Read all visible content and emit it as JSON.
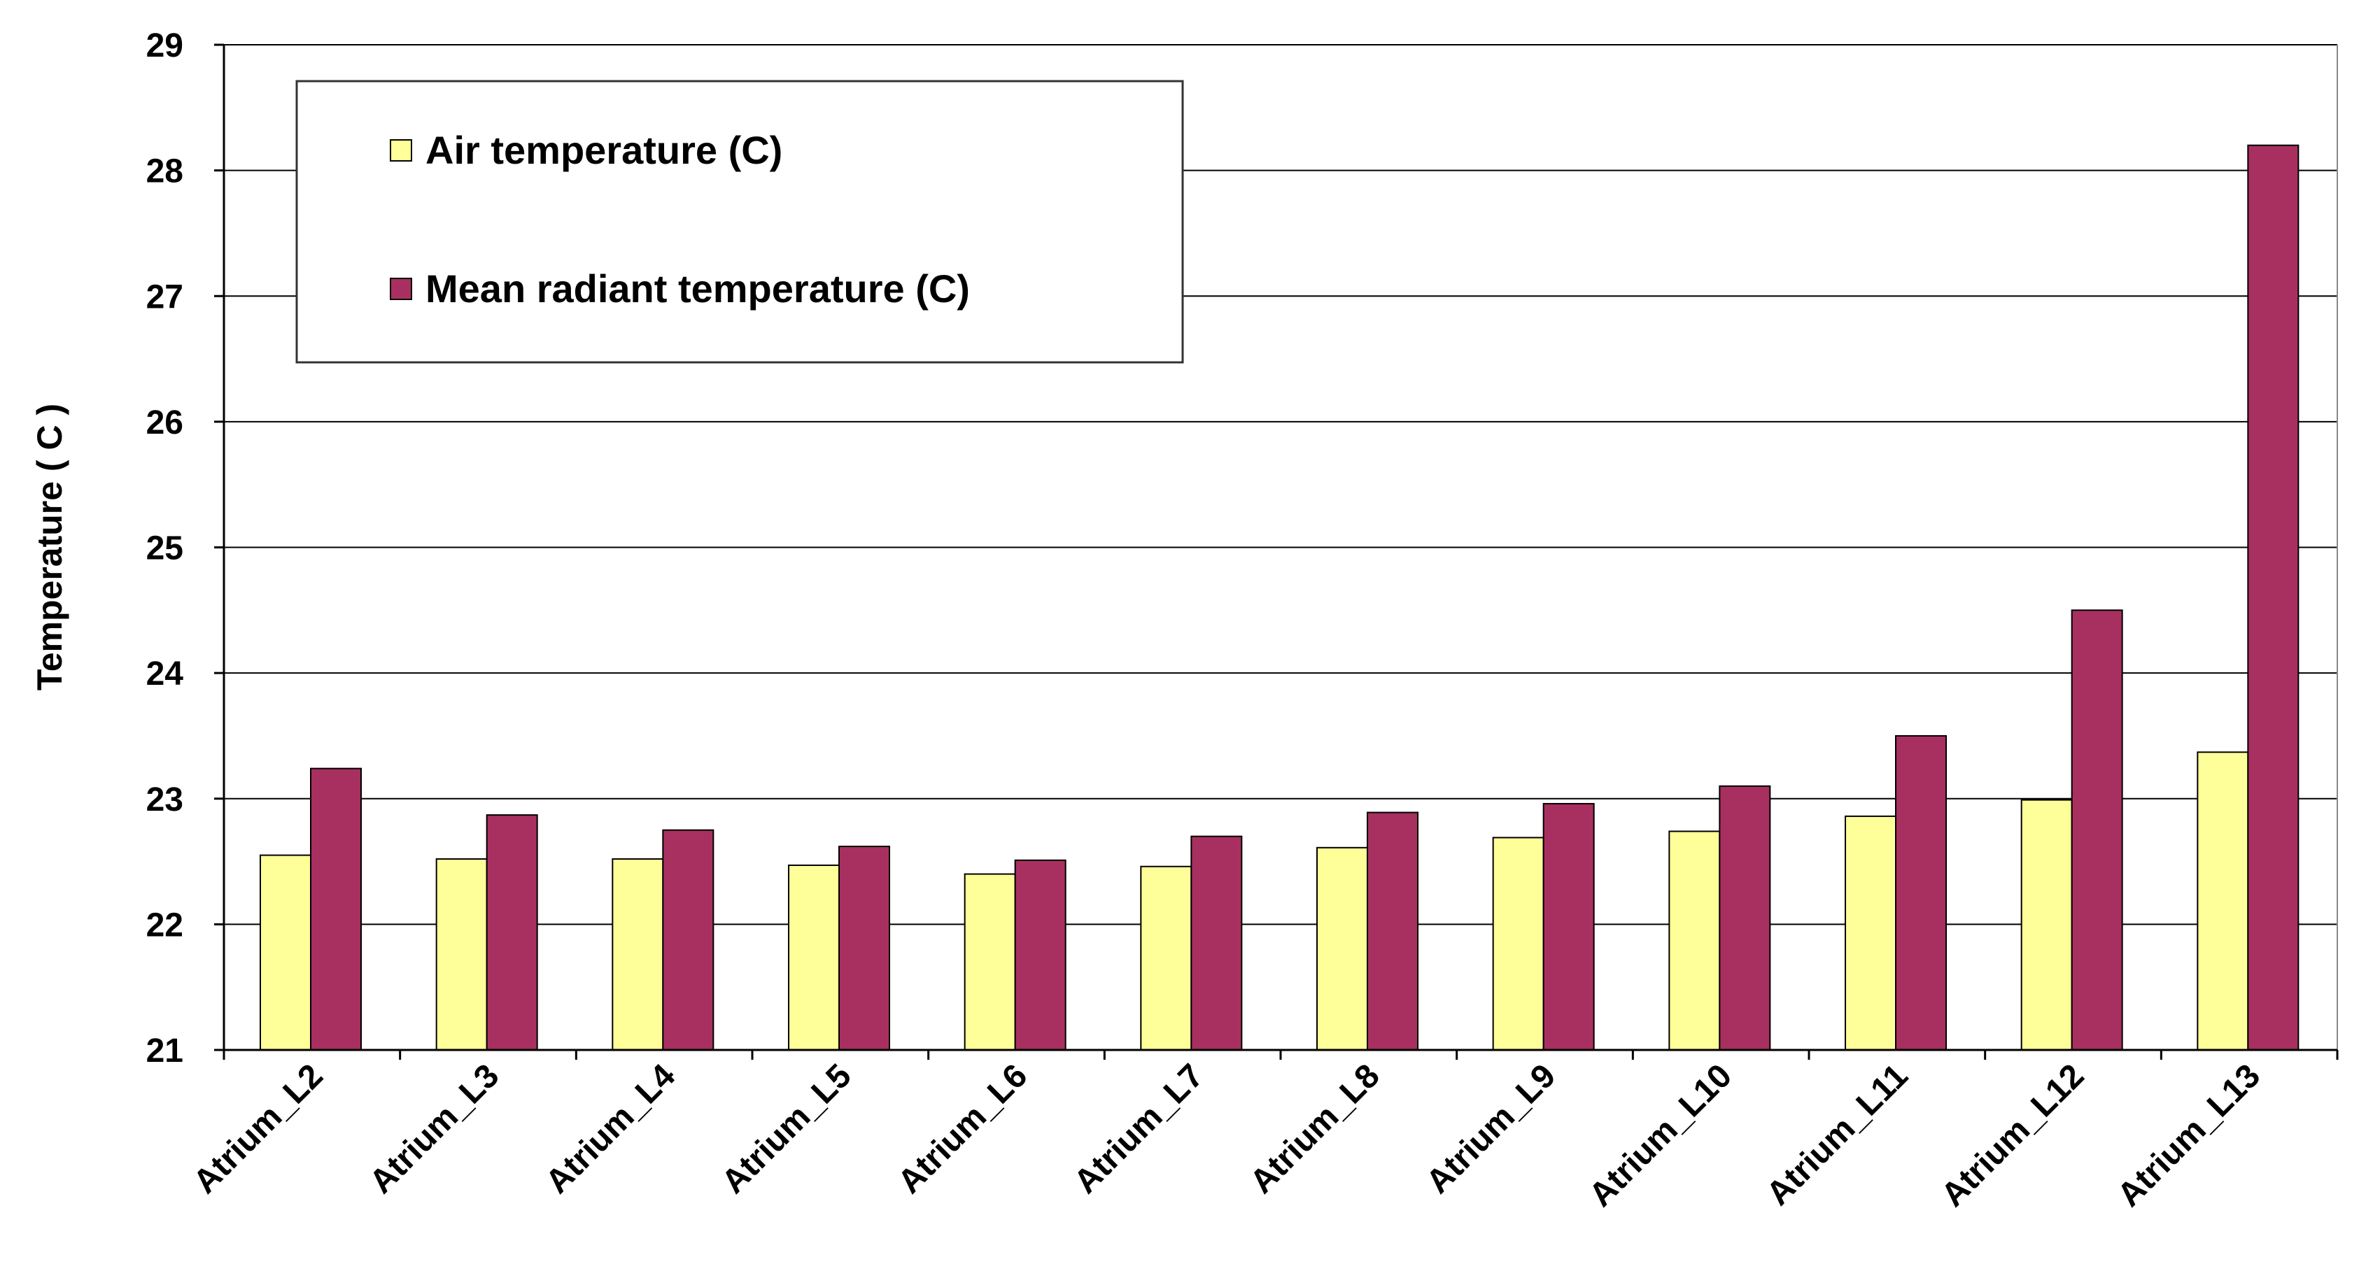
{
  "chart_data": {
    "type": "bar",
    "title": "",
    "xlabel": "",
    "ylabel": "Temperature ( C )",
    "ylim": [
      21,
      29
    ],
    "yticks": [
      "21",
      "22",
      "23",
      "24",
      "25",
      "26",
      "27",
      "28",
      "29"
    ],
    "grid": true,
    "legend_position": "top-left",
    "categories": [
      "Atrium_L2",
      "Atrium_L3",
      "Atrium_L4",
      "Atrium_L5",
      "Atrium_L6",
      "Atrium_L7",
      "Atrium_L8",
      "Atrium_L9",
      "Atrium_L10",
      "Atrium_L11",
      "Atrium_L12",
      "Atrium_L13"
    ],
    "series": [
      {
        "name": "Air temperature (C)",
        "color": "#FFFF99",
        "values": [
          22.55,
          22.52,
          22.52,
          22.47,
          22.4,
          22.46,
          22.61,
          22.69,
          22.74,
          22.86,
          22.99,
          23.37
        ]
      },
      {
        "name": "Mean radiant temperature (C)",
        "color": "#A83060",
        "values": [
          23.24,
          22.87,
          22.75,
          22.62,
          22.51,
          22.7,
          22.89,
          22.96,
          23.1,
          23.5,
          24.5,
          28.2
        ]
      }
    ]
  }
}
